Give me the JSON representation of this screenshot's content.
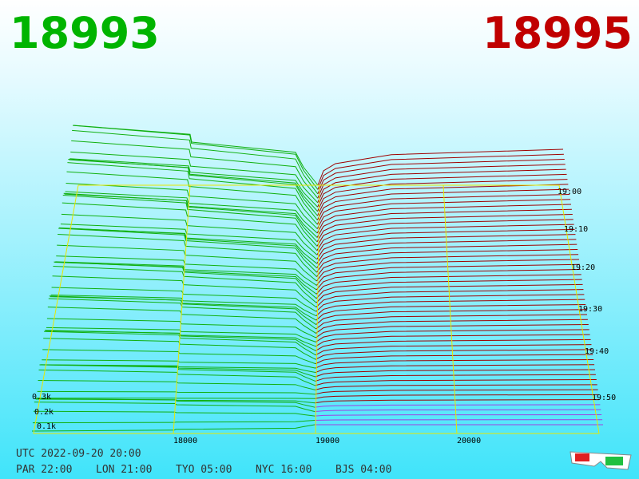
{
  "header": {
    "bid": "18993",
    "ask": "18995"
  },
  "price_labels": [
    "18000",
    "19000",
    "20000"
  ],
  "time_labels": [
    "19:00",
    "19:10",
    "19:20",
    "19:30",
    "19:40",
    "19:50"
  ],
  "depth_labels": [
    "0.3k",
    "0.2k",
    "0.1k"
  ],
  "footer": {
    "utc": "UTC 2022-09-20 20:00",
    "clocks": [
      "PAR 22:00",
      "LON 21:00",
      "TYO 05:00",
      "NYC 16:00",
      "BJS 04:00"
    ]
  }
}
